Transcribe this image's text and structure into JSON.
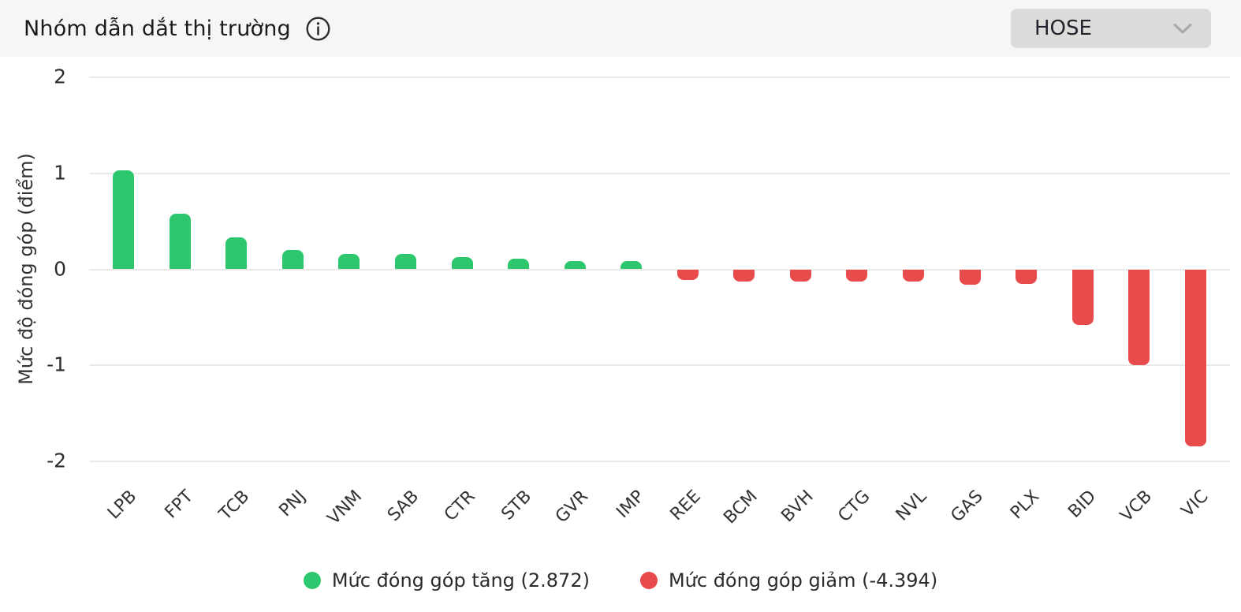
{
  "header": {
    "title": "Nhóm dẫn dắt thị trường",
    "info_icon": "info-circle-icon",
    "exchange_selector": {
      "value": "HOSE",
      "chevron_icon": "chevron-down-icon"
    }
  },
  "chart_data": {
    "type": "bar",
    "title": "Nhóm dẫn dắt thị trường",
    "xlabel": "",
    "ylabel": "Mức độ đóng góp (điểm)",
    "ylim": [
      -2,
      2
    ],
    "yticks": [
      2,
      1,
      0,
      -1,
      -2
    ],
    "grid": true,
    "categories": [
      "LPB",
      "FPT",
      "TCB",
      "PNJ",
      "VNM",
      "SAB",
      "CTR",
      "STB",
      "GVR",
      "IMP",
      "REE",
      "BCM",
      "BVH",
      "CTG",
      "NVL",
      "GAS",
      "PLX",
      "BID",
      "VCB",
      "VIC"
    ],
    "values": [
      1.03,
      0.58,
      0.33,
      0.2,
      0.16,
      0.16,
      0.13,
      0.11,
      0.09,
      0.09,
      -0.11,
      -0.13,
      -0.13,
      -0.13,
      -0.13,
      -0.16,
      -0.15,
      -0.58,
      -1.0,
      -1.84
    ],
    "colors": {
      "positive": "#2DC76D",
      "negative": "#E84B4B"
    },
    "legend": {
      "position": "bottom",
      "items": [
        {
          "label": "Mức đóng góp tăng (2.872)",
          "color": "#2DC76D",
          "total": 2.872
        },
        {
          "label": "Mức đóng góp giảm (-4.394)",
          "color": "#E84B4B",
          "total": -4.394
        }
      ]
    }
  }
}
